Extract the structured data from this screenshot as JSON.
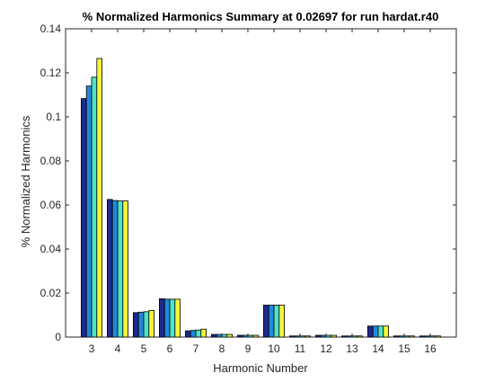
{
  "chart_data": {
    "type": "bar",
    "title": "% Normalized Harmonics Summary at 0.02697 for run hardat.r40",
    "xlabel": "Harmonic Number",
    "ylabel": "% Normalized Harmonics",
    "categories": [
      "3",
      "4",
      "5",
      "6",
      "7",
      "8",
      "9",
      "10",
      "11",
      "12",
      "13",
      "14",
      "15",
      "16"
    ],
    "xlim": [
      2,
      17
    ],
    "ylim": [
      0,
      0.14
    ],
    "yticks": [
      "0",
      "0.02",
      "0.04",
      "0.06",
      "0.08",
      "0.1",
      "0.12",
      "0.14"
    ],
    "ytick_values": [
      0,
      0.02,
      0.04,
      0.06,
      0.08,
      0.1,
      0.12,
      0.14
    ],
    "grid": false,
    "legend": "none",
    "bar_colors": [
      "#1f2a8c",
      "#1f8ad8",
      "#4fe3c8",
      "#f5f53a"
    ],
    "series": [
      {
        "values": [
          0.1083,
          0.0625,
          0.0111,
          0.0174,
          0.0028,
          0.0012,
          0.0008,
          0.0145,
          0.0005,
          0.0008,
          0.0005,
          0.005,
          0.0005,
          0.0005
        ]
      },
      {
        "values": [
          0.114,
          0.062,
          0.0113,
          0.0172,
          0.003,
          0.0012,
          0.0008,
          0.0145,
          0.0005,
          0.0008,
          0.0005,
          0.005,
          0.0005,
          0.0005
        ]
      },
      {
        "values": [
          0.118,
          0.0618,
          0.0115,
          0.0172,
          0.0032,
          0.0012,
          0.0008,
          0.0145,
          0.0005,
          0.0008,
          0.0005,
          0.005,
          0.0005,
          0.0005
        ]
      },
      {
        "values": [
          0.1265,
          0.0618,
          0.0121,
          0.0172,
          0.0036,
          0.0012,
          0.0008,
          0.0145,
          0.0005,
          0.0008,
          0.0005,
          0.005,
          0.0005,
          0.0005
        ]
      }
    ]
  }
}
